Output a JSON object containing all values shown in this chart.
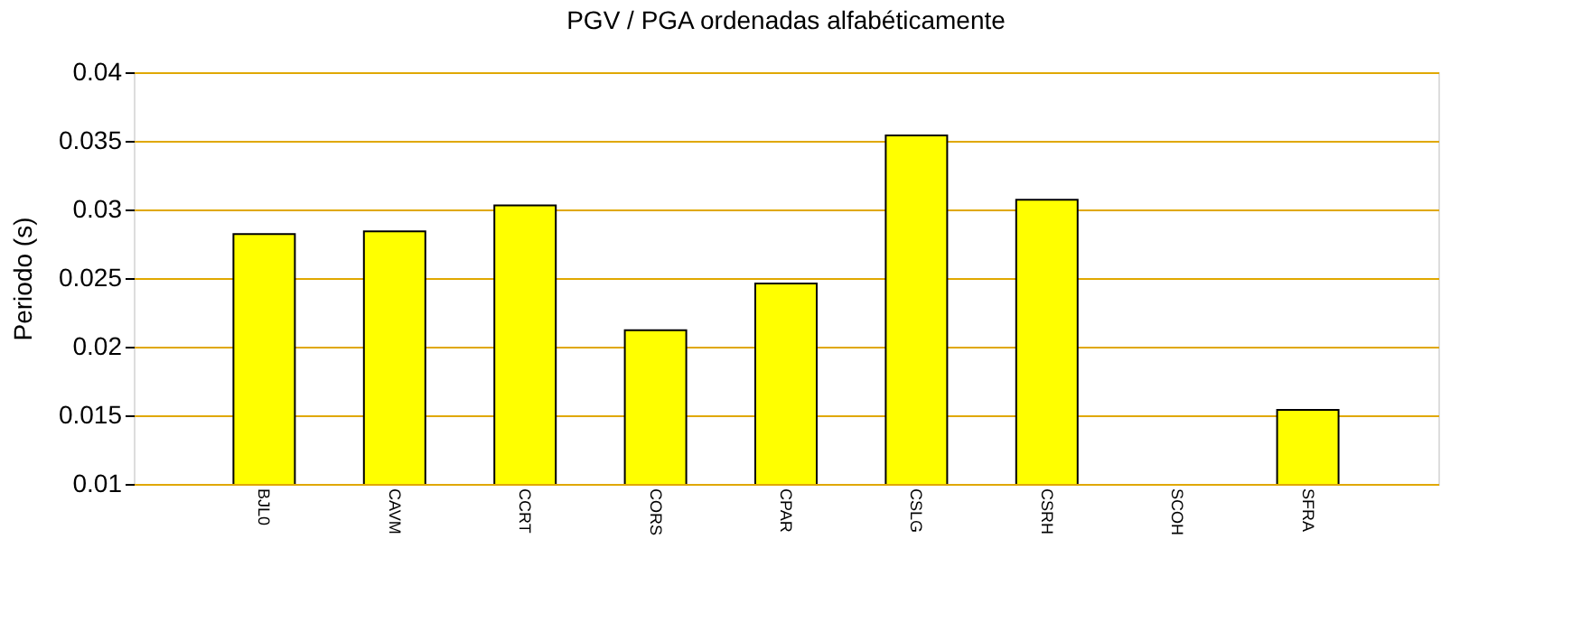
{
  "chart_data": {
    "type": "bar",
    "title": "PGV / PGA ordenadas alfabéticamente",
    "ylabel": "Periodo (s)",
    "categories": [
      "BJL0",
      "CAVM",
      "CCRT",
      "CORS",
      "CPAR",
      "CSLG",
      "CSRH",
      "SCOH",
      "SFRA"
    ],
    "series": [
      {
        "color": "#ffff00",
        "values": [
          0.0282,
          0.0284,
          0.0303,
          0.0212,
          0.0246,
          0.0354,
          0.0307,
          null,
          0.0154
        ]
      }
    ],
    "ylim": [
      0.01,
      0.04
    ],
    "yticks": [
      0.01,
      0.015,
      0.02,
      0.025,
      0.03,
      0.035,
      0.04
    ],
    "grid": "y"
  }
}
